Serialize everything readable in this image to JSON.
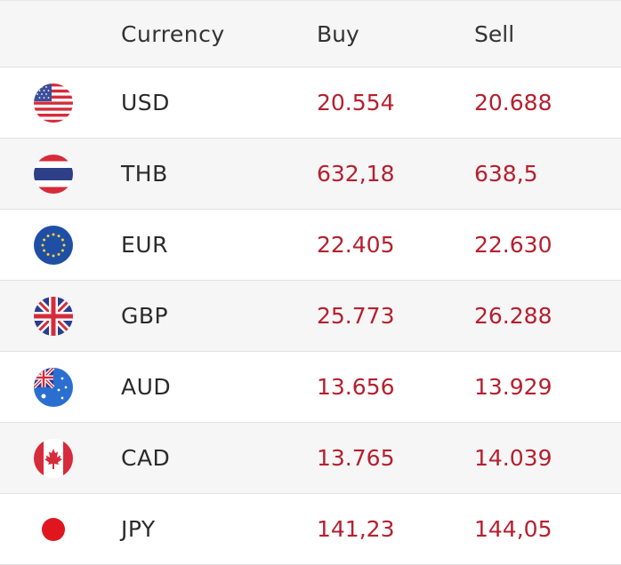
{
  "header": {
    "currency_label": "Currency",
    "buy_label": "Buy",
    "sell_label": "Sell"
  },
  "rates": [
    {
      "code": "USD",
      "buy": "20.554",
      "sell": "20.688",
      "flag_icon": "us-flag-icon"
    },
    {
      "code": "THB",
      "buy": "632,18",
      "sell": "638,5",
      "flag_icon": "thailand-flag-icon"
    },
    {
      "code": "EUR",
      "buy": "22.405",
      "sell": "22.630",
      "flag_icon": "eu-flag-icon"
    },
    {
      "code": "GBP",
      "buy": "25.773",
      "sell": "26.288",
      "flag_icon": "uk-flag-icon"
    },
    {
      "code": "AUD",
      "buy": "13.656",
      "sell": "13.929",
      "flag_icon": "australia-flag-icon"
    },
    {
      "code": "CAD",
      "buy": "13.765",
      "sell": "14.039",
      "flag_icon": "canada-flag-icon"
    },
    {
      "code": "JPY",
      "buy": "141,23",
      "sell": "144,05",
      "flag_icon": "japan-flag-icon"
    }
  ],
  "colors": {
    "price": "#b5202f",
    "row_alt": "#f6f6f6",
    "divider": "#e1e1e1"
  }
}
